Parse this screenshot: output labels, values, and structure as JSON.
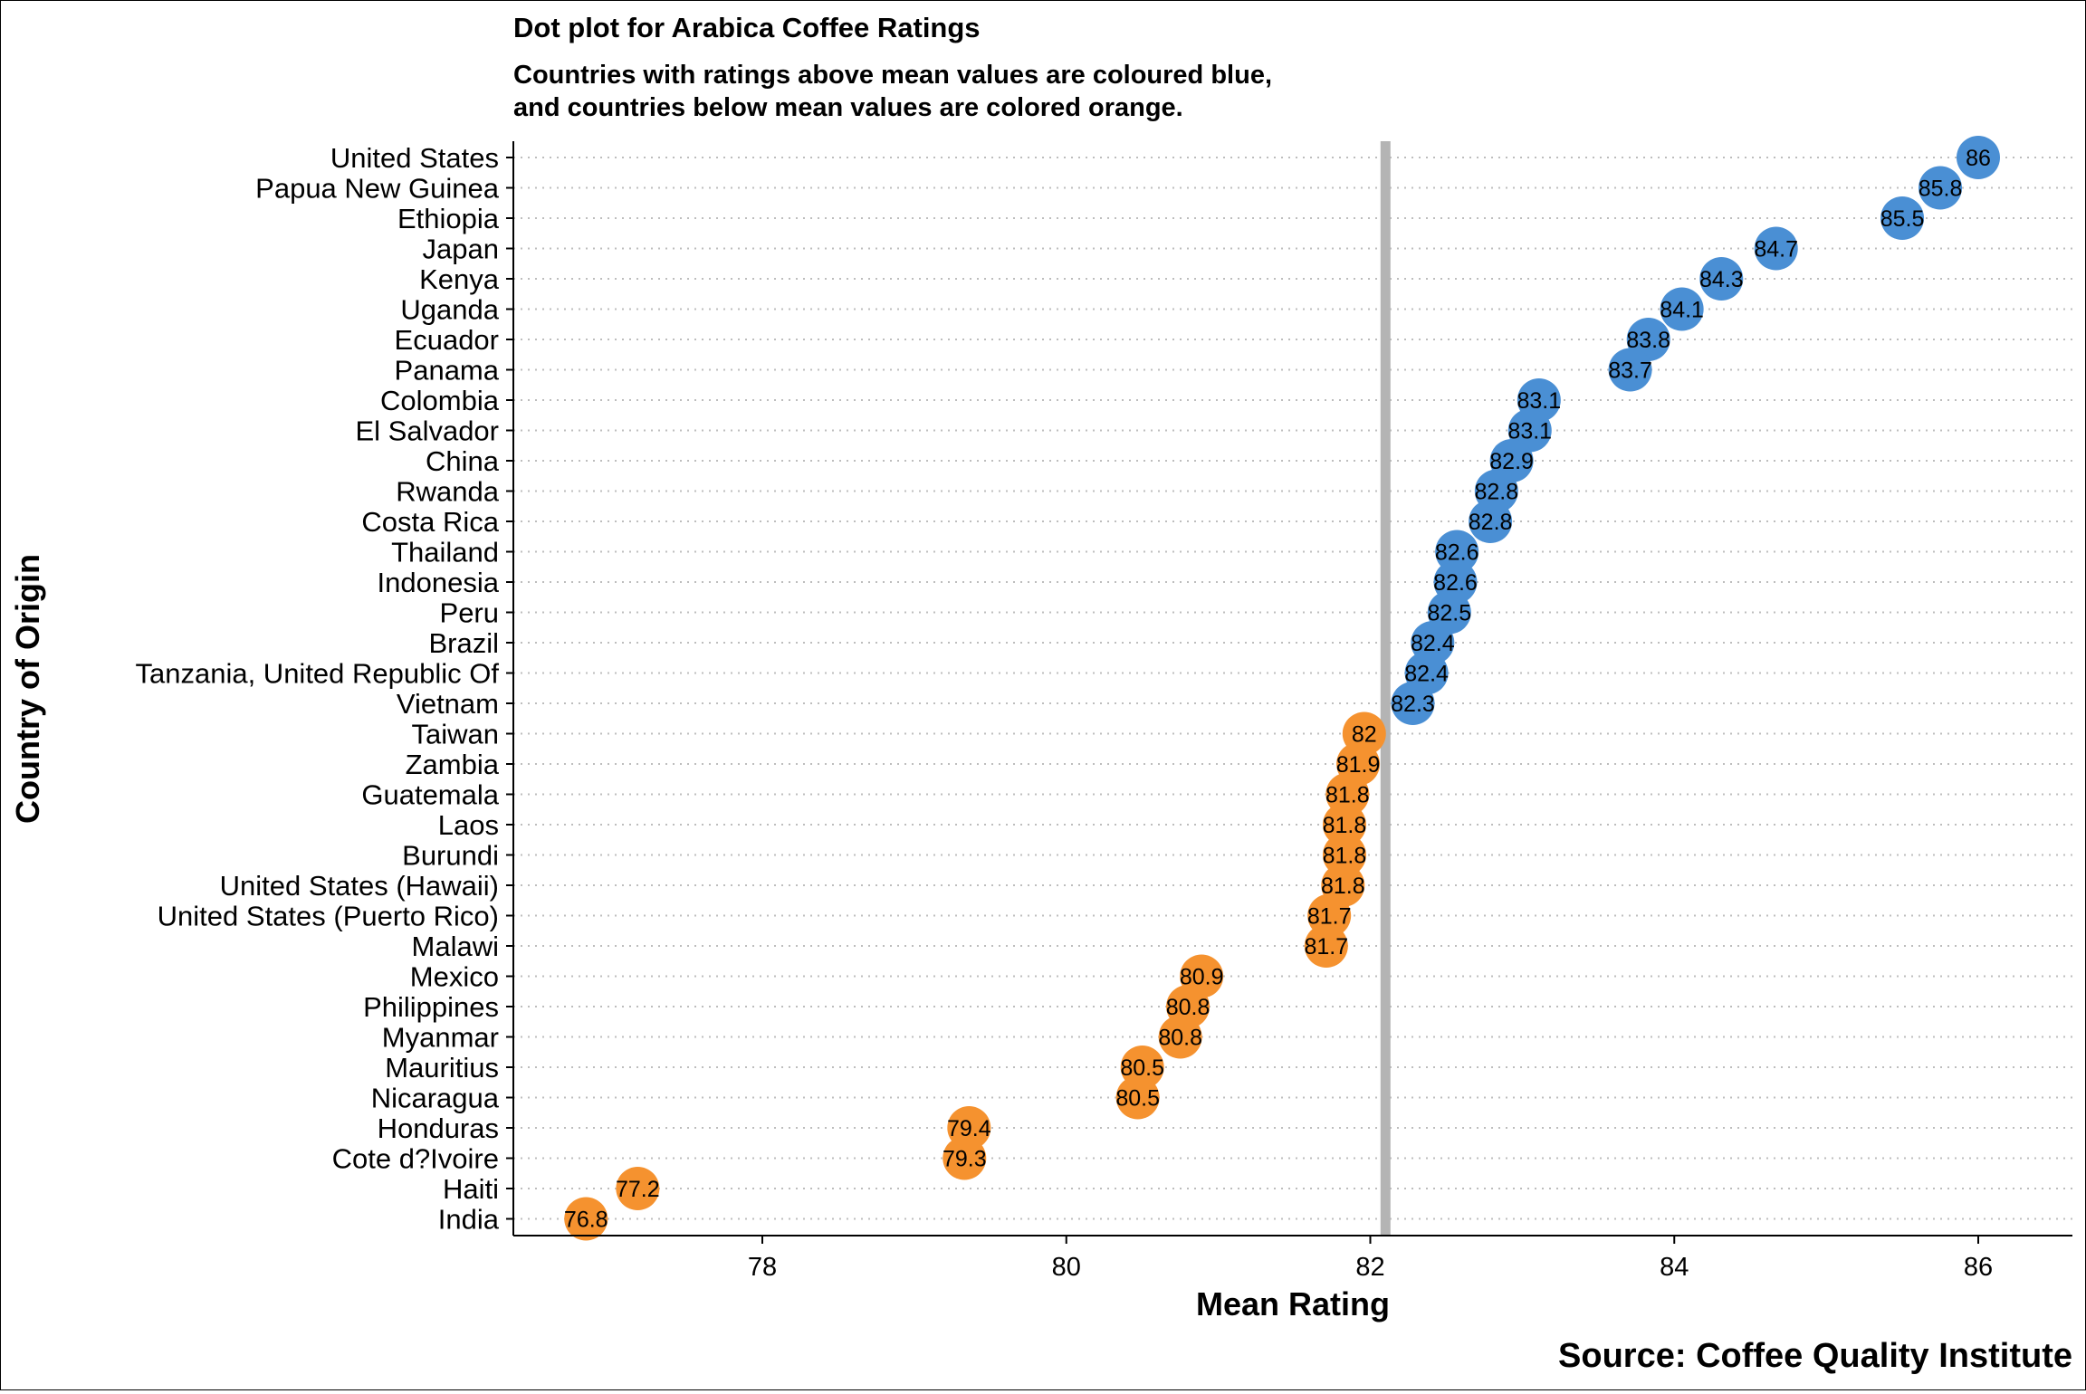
{
  "chart_data": {
    "type": "scatter",
    "title": "Dot plot for Arabica Coffee Ratings",
    "subtitle_lines": [
      "Countries with ratings above mean values are coloured blue,",
      "and countries below mean values are colored orange."
    ],
    "xlabel": "Mean Rating",
    "ylabel": "Country of Origin",
    "caption": "Source: Coffee Quality Institute",
    "xlim": [
      76.4,
      86.5
    ],
    "xticks": [
      78,
      80,
      82,
      84,
      86
    ],
    "mean_line": 82.1,
    "grid": "horizontal-dotted",
    "legend": "none",
    "colors": {
      "above": "#4a8fd4",
      "below": "#f5922f",
      "mean_line": "#b4b4b4"
    },
    "points": [
      {
        "country": "United States",
        "value": 86,
        "label": "86"
      },
      {
        "country": "Papua New Guinea",
        "value": 85.75,
        "label": "85.8"
      },
      {
        "country": "Ethiopia",
        "value": 85.5,
        "label": "85.5"
      },
      {
        "country": "Japan",
        "value": 84.67,
        "label": "84.7"
      },
      {
        "country": "Kenya",
        "value": 84.31,
        "label": "84.3"
      },
      {
        "country": "Uganda",
        "value": 84.05,
        "label": "84.1"
      },
      {
        "country": "Ecuador",
        "value": 83.83,
        "label": "83.8"
      },
      {
        "country": "Panama",
        "value": 83.71,
        "label": "83.7"
      },
      {
        "country": "Colombia",
        "value": 83.11,
        "label": "83.1"
      },
      {
        "country": "El Salvador",
        "value": 83.05,
        "label": "83.1"
      },
      {
        "country": "China",
        "value": 82.93,
        "label": "82.9"
      },
      {
        "country": "Rwanda",
        "value": 82.83,
        "label": "82.8"
      },
      {
        "country": "Costa Rica",
        "value": 82.79,
        "label": "82.8"
      },
      {
        "country": "Thailand",
        "value": 82.57,
        "label": "82.6"
      },
      {
        "country": "Indonesia",
        "value": 82.56,
        "label": "82.6"
      },
      {
        "country": "Peru",
        "value": 82.52,
        "label": "82.5"
      },
      {
        "country": "Brazil",
        "value": 82.41,
        "label": "82.4"
      },
      {
        "country": "Tanzania, United Republic Of",
        "value": 82.37,
        "label": "82.4"
      },
      {
        "country": "Vietnam",
        "value": 82.28,
        "label": "82.3"
      },
      {
        "country": "Taiwan",
        "value": 81.96,
        "label": "82"
      },
      {
        "country": "Zambia",
        "value": 81.92,
        "label": "81.9"
      },
      {
        "country": "Guatemala",
        "value": 81.85,
        "label": "81.8"
      },
      {
        "country": "Laos",
        "value": 81.83,
        "label": "81.8"
      },
      {
        "country": "Burundi",
        "value": 81.83,
        "label": "81.8"
      },
      {
        "country": "United States (Hawaii)",
        "value": 81.82,
        "label": "81.8"
      },
      {
        "country": "United States (Puerto Rico)",
        "value": 81.73,
        "label": "81.7"
      },
      {
        "country": "Malawi",
        "value": 81.71,
        "label": "81.7"
      },
      {
        "country": "Mexico",
        "value": 80.89,
        "label": "80.9"
      },
      {
        "country": "Philippines",
        "value": 80.8,
        "label": "80.8"
      },
      {
        "country": "Myanmar",
        "value": 80.75,
        "label": "80.8"
      },
      {
        "country": "Mauritius",
        "value": 80.5,
        "label": "80.5"
      },
      {
        "country": "Nicaragua",
        "value": 80.47,
        "label": "80.5"
      },
      {
        "country": "Honduras",
        "value": 79.36,
        "label": "79.4"
      },
      {
        "country": "Cote d?Ivoire",
        "value": 79.33,
        "label": "79.3"
      },
      {
        "country": "Haiti",
        "value": 77.18,
        "label": "77.2"
      },
      {
        "country": "India",
        "value": 76.84,
        "label": "76.8"
      }
    ]
  }
}
